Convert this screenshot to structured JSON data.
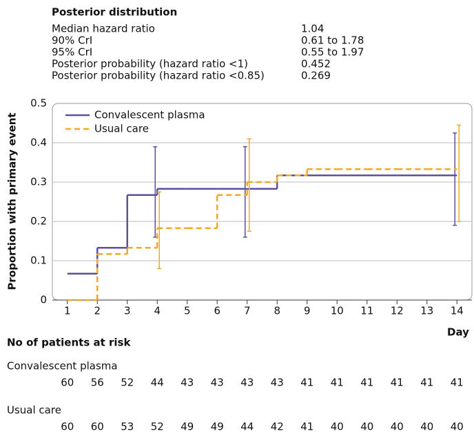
{
  "chart_data": {
    "type": "step",
    "annotation": {
      "title": "Posterior distribution",
      "rows": [
        {
          "label": "Median hazard ratio",
          "value": "1.04"
        },
        {
          "label": "90% CrI",
          "value": "0.61 to 1.78"
        },
        {
          "label": "95% CrI",
          "value": "0.55 to 1.97"
        },
        {
          "label": "Posterior probability (hazard ratio <1)",
          "value": "0.452"
        },
        {
          "label": "Posterior probability (hazard ratio <0.85)",
          "value": "0.269"
        }
      ]
    },
    "y_label": "Proportion with primary event",
    "x_label": "Day",
    "x": [
      1,
      2,
      3,
      4,
      5,
      6,
      7,
      8,
      9,
      10,
      11,
      12,
      13,
      14
    ],
    "xlim": [
      0.5,
      14.5
    ],
    "ylim": [
      0,
      0.5
    ],
    "yticks": [
      0,
      0.1,
      0.2,
      0.3,
      0.4,
      0.5
    ],
    "grid": true,
    "legend": "upper left",
    "series": [
      {
        "name": "Convalescent plasma",
        "color": "#5b4fa3",
        "dashed": false,
        "values": [
          0.067,
          0.133,
          0.267,
          0.283,
          0.283,
          0.283,
          0.283,
          0.317,
          0.317,
          0.317,
          0.317,
          0.317,
          0.317,
          0.317
        ],
        "error_bars": [
          {
            "x": 4,
            "lower": 0.16,
            "upper": 0.39
          },
          {
            "x": 7,
            "lower": 0.16,
            "upper": 0.39
          },
          {
            "x": 14,
            "lower": 0.19,
            "upper": 0.425
          }
        ]
      },
      {
        "name": "Usual care",
        "color": "#f5a623",
        "dashed": true,
        "values": [
          0,
          0.117,
          0.133,
          0.183,
          0.183,
          0.267,
          0.3,
          0.317,
          0.333,
          0.333,
          0.333,
          0.333,
          0.333,
          0.333
        ],
        "error_bars": [
          {
            "x": 4,
            "lower": 0.08,
            "upper": 0.275
          },
          {
            "x": 7,
            "lower": 0.175,
            "upper": 0.41
          },
          {
            "x": 14,
            "lower": 0.2,
            "upper": 0.445
          }
        ]
      }
    ],
    "at_risk": {
      "title": "No of patients at risk",
      "groups": [
        {
          "name": "Convalescent plasma",
          "counts": [
            60,
            56,
            52,
            44,
            43,
            43,
            43,
            43,
            41,
            41,
            41,
            41,
            41,
            41
          ]
        },
        {
          "name": "Usual care",
          "counts": [
            60,
            60,
            53,
            52,
            49,
            49,
            44,
            42,
            41,
            40,
            40,
            40,
            40,
            40
          ]
        }
      ]
    }
  }
}
